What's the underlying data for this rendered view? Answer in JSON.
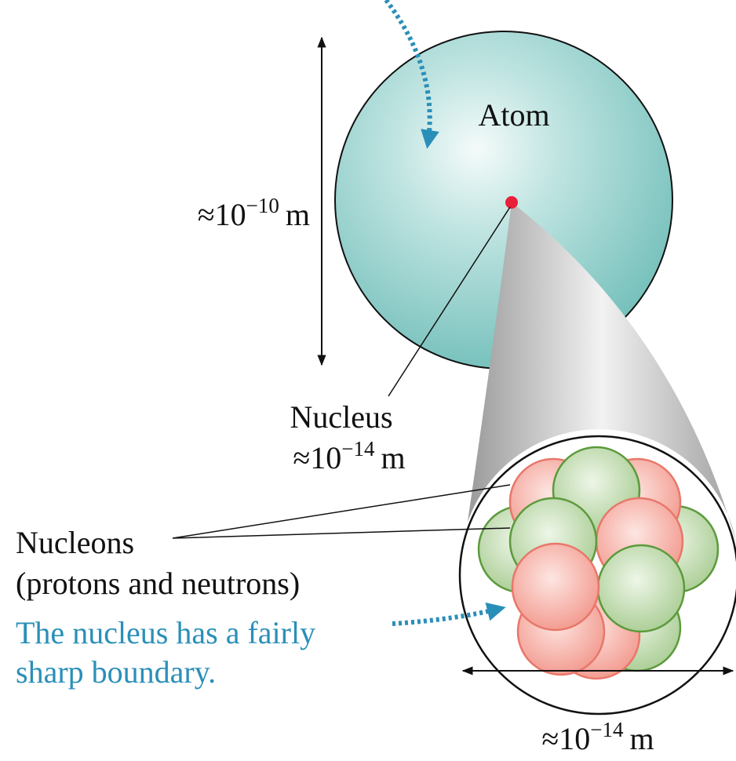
{
  "atom": {
    "label": "Atom",
    "size": {
      "prefix": "≈10",
      "exponent": "−10",
      "unit": "m"
    }
  },
  "nucleus": {
    "label": "Nucleus",
    "size": {
      "prefix": "≈10",
      "exponent": "−14",
      "unit": "m"
    }
  },
  "nucleons": {
    "label": "Nucleons",
    "detail": "(protons and neutrons)"
  },
  "boundary_note": {
    "lines": [
      "The nucleus has a fairly",
      "sharp boundary."
    ]
  },
  "zoom_size": {
    "prefix": "≈10",
    "exponent": "−14",
    "unit": "m"
  }
}
